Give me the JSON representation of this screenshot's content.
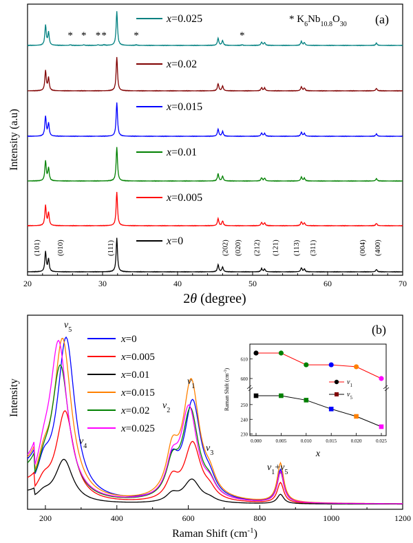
{
  "chart_data": [
    {
      "panel": "(a)",
      "type": "line",
      "xlabel": "2θ (degree)",
      "ylabel": "Intensity (a.u)",
      "xlim": [
        20,
        70
      ],
      "xticks": [
        20,
        30,
        40,
        50,
        60,
        70
      ],
      "legend_placement": "inline-left",
      "impurity_label": "* K6Nb10.8O30",
      "impurity_markers": [
        25.7,
        27.5,
        29.4,
        30.2,
        34.5,
        48.6
      ],
      "hkl_labels": [
        {
          "label": "(101)",
          "x": 21.2
        },
        {
          "label": "(010)",
          "x": 24.3
        },
        {
          "label": "(111)",
          "x": 31.0
        },
        {
          "label": "(202)",
          "x": 46.3
        },
        {
          "label": "(020)",
          "x": 48.0
        },
        {
          "label": "(212)",
          "x": 50.5
        },
        {
          "label": "(121)",
          "x": 53.0
        },
        {
          "label": "(113)",
          "x": 55.8
        },
        {
          "label": "(311)",
          "x": 58.0
        },
        {
          "label": "(004)",
          "x": 64.6
        },
        {
          "label": "(400)",
          "x": 66.6
        }
      ],
      "peaks": [
        {
          "x": 22.4,
          "h": 0.5
        },
        {
          "x": 22.8,
          "h": 0.32
        },
        {
          "x": 31.9,
          "h": 0.85
        },
        {
          "x": 45.4,
          "h": 0.18
        },
        {
          "x": 46.0,
          "h": 0.12
        },
        {
          "x": 51.2,
          "h": 0.08
        },
        {
          "x": 51.6,
          "h": 0.07
        },
        {
          "x": 56.5,
          "h": 0.1
        },
        {
          "x": 56.9,
          "h": 0.07
        },
        {
          "x": 66.5,
          "h": 0.06
        }
      ],
      "series": [
        {
          "name": "x=0",
          "color": "#000000"
        },
        {
          "name": "x=0.005",
          "color": "#ff0000"
        },
        {
          "name": "x=0.01",
          "color": "#008000"
        },
        {
          "name": "x=0.015",
          "color": "#0000ff"
        },
        {
          "name": "x=0.02",
          "color": "#800000"
        },
        {
          "name": "x=0.025",
          "color": "#008080"
        }
      ]
    },
    {
      "panel": "(b)",
      "type": "line",
      "xlabel": "Raman Shift (cm-1)",
      "ylabel": "Intensity",
      "xlim": [
        150,
        1200
      ],
      "xticks": [
        200,
        400,
        600,
        800,
        1000,
        1200
      ],
      "legend_placement": "top-left",
      "mode_labels": [
        "v5",
        "v4",
        "v2",
        "v1",
        "v3",
        "v1+v5"
      ],
      "series": [
        {
          "name": "x=0",
          "color": "#0000ff",
          "v5_pos": 258,
          "v5_h": 0.86,
          "v1_pos": 612,
          "v1_h": 0.5
        },
        {
          "name": "x=0.005",
          "color": "#ff0000",
          "v5_pos": 255,
          "v5_h": 0.48,
          "v1_pos": 612,
          "v1_h": 0.3
        },
        {
          "name": "x=0.01",
          "color": "#000000",
          "v5_pos": 252,
          "v5_h": 0.23,
          "v1_pos": 610,
          "v1_h": 0.12
        },
        {
          "name": "x=0.015",
          "color": "#ff8000",
          "v5_pos": 248,
          "v5_h": 0.85,
          "v1_pos": 608,
          "v1_h": 0.6
        },
        {
          "name": "x=0.02",
          "color": "#008000",
          "v5_pos": 242,
          "v5_h": 0.71,
          "v1_pos": 606,
          "v1_h": 0.46
        },
        {
          "name": "x=0.025",
          "color": "#ff00ff",
          "v5_pos": 237,
          "v5_h": 0.83,
          "v1_pos": 602,
          "v1_h": 0.47
        }
      ],
      "inset": {
        "type": "line",
        "xlabel": "x",
        "ylabel": "Raman Shift (cm-1)",
        "x": [
          0.0,
          0.005,
          0.01,
          0.015,
          0.02,
          0.025
        ],
        "xticks": [
          "0.000",
          "0.005",
          "0.010",
          "0.015",
          "0.020",
          "0.025"
        ],
        "yticks_upper": [
          600,
          610
        ],
        "yticks_lower": [
          230,
          240,
          250
        ],
        "series": [
          {
            "name": "v1",
            "values": [
              613,
              613,
              607,
              607,
              606,
              600
            ],
            "line_color": "#ff0000"
          },
          {
            "name": "v5",
            "values": [
              256,
              256,
              253,
              247,
              242,
              235
            ],
            "line_color": "#000000"
          }
        ],
        "point_colors": [
          "#000000",
          "#008000",
          "#008000",
          "#0000ff",
          "#ff8000",
          "#ff00ff"
        ]
      }
    }
  ]
}
